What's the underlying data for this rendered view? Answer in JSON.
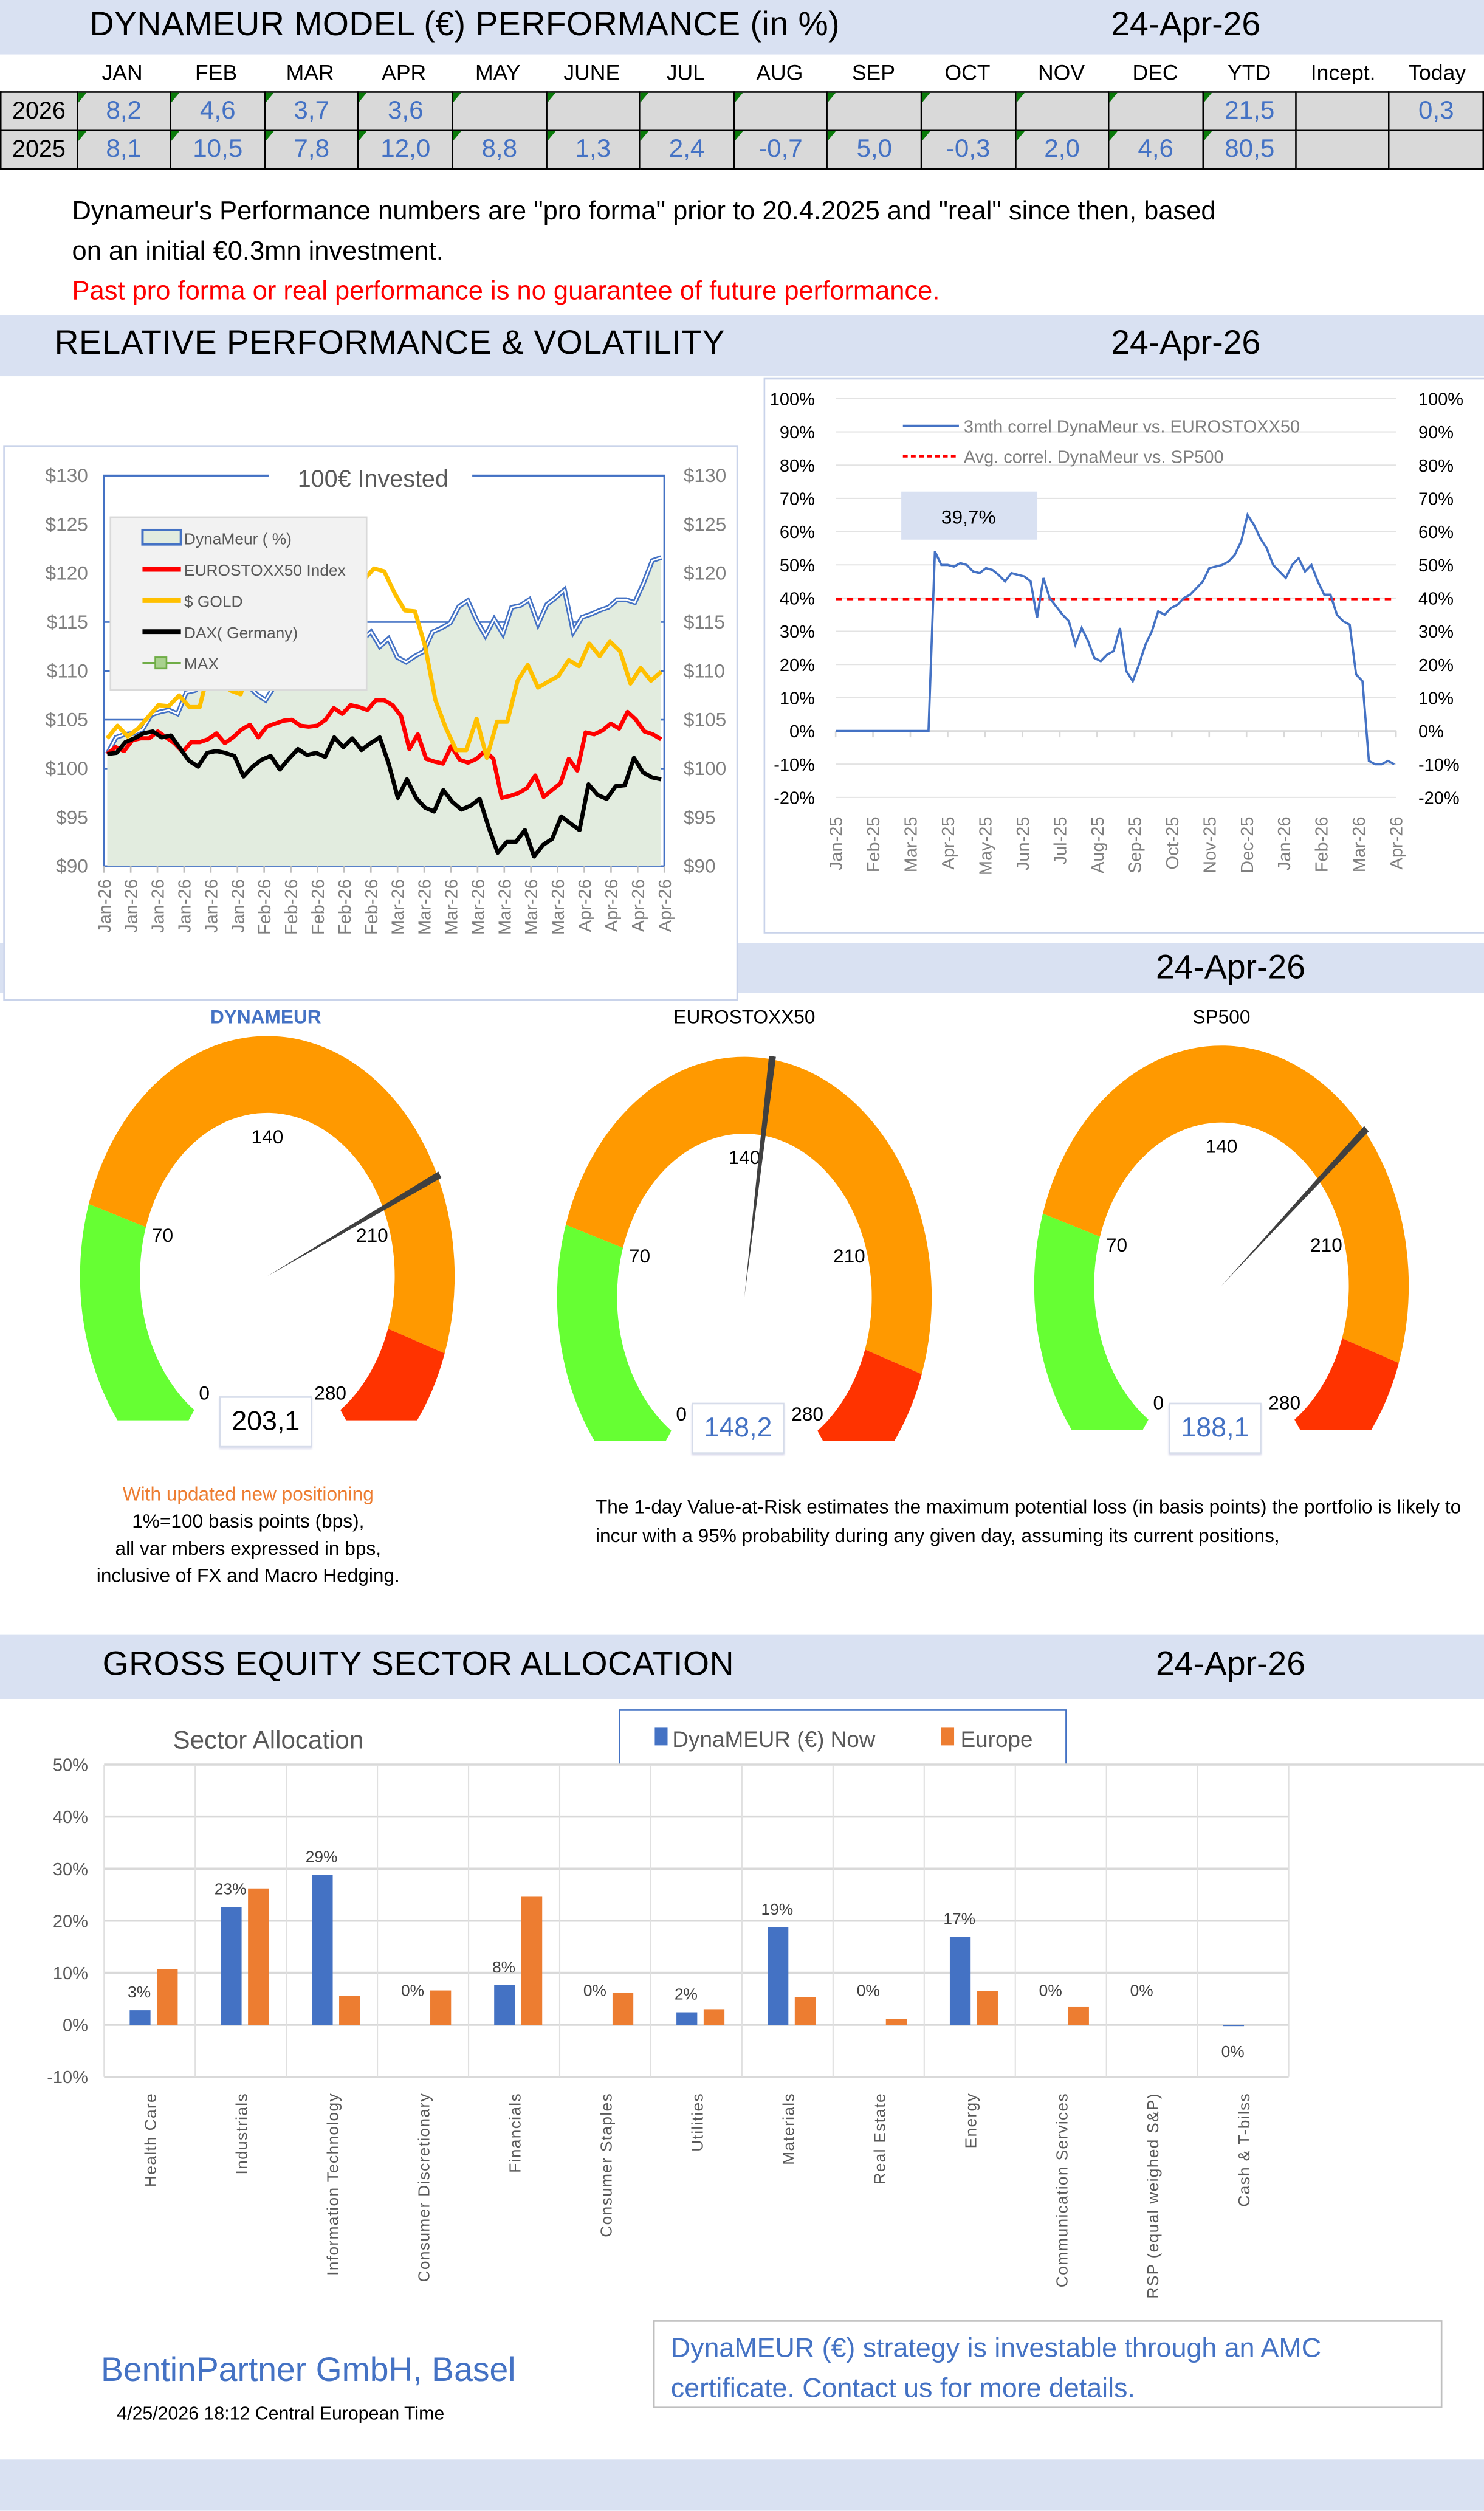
{
  "sections": {
    "performance": {
      "title": "DYNAMEUR MODEL (€) PERFORMANCE (in %)",
      "date": "24-Apr-26"
    },
    "relative": {
      "title": "RELATIVE PERFORMANCE & VOLATILITY",
      "date": "24-Apr-26"
    },
    "var": {
      "date": "24-Apr-26"
    },
    "sector": {
      "title": "GROSS EQUITY SECTOR ALLOCATION",
      "date": "24-Apr-26"
    }
  },
  "performance_table": {
    "columns": [
      "JAN",
      "FEB",
      "MAR",
      "APR",
      "MAY",
      "JUNE",
      "JUL",
      "AUG",
      "SEP",
      "OCT",
      "NOV",
      "DEC",
      "YTD",
      "Incept.",
      "Today"
    ],
    "rows": [
      {
        "year": "2026",
        "values": [
          "8,2",
          "4,6",
          "3,7",
          "3,6",
          "",
          "",
          "",
          "",
          "",
          "",
          "",
          "",
          "21,5",
          "",
          "0,3"
        ]
      },
      {
        "year": "2025",
        "values": [
          "8,1",
          "10,5",
          "7,8",
          "12,0",
          "8,8",
          "1,3",
          "2,4",
          "-0,7",
          "5,0",
          "-0,3",
          "2,0",
          "4,6",
          "80,5",
          "",
          ""
        ]
      }
    ]
  },
  "disclaimer": {
    "line1": "Dynameur's Performance numbers are \"pro forma\" prior to 20.4.2025 and \"real\" since then, based",
    "line2": "on an initial €0.3mn investment.",
    "warning": "Past pro forma or real performance is no guarantee of future performance."
  },
  "gauges": [
    {
      "label": "DYNAMEUR",
      "value": 203.1,
      "display": "203,1",
      "label_color": "#4472c4",
      "value_color": "#000000"
    },
    {
      "label": "EUROSTOXX50",
      "value": 148.2,
      "display": "148,2",
      "label_color": "#000000",
      "value_color": "#4472c4"
    },
    {
      "label": "SP500",
      "value": 188.1,
      "display": "188,1",
      "label_color": "#000000",
      "value_color": "#4472c4"
    }
  ],
  "gauge_scale": {
    "min": 0,
    "max": 280,
    "ticks": [
      "0",
      "70",
      "140",
      "210",
      "280"
    ],
    "bands": [
      {
        "from": 0,
        "to": 70,
        "color": "#66ff33"
      },
      {
        "from": 70,
        "to": 245,
        "color": "#ff9900"
      },
      {
        "from": 245,
        "to": 280,
        "color": "#ff3300"
      }
    ]
  },
  "notes": {
    "left_orange": "With updated new positioning",
    "left_lines": [
      "1%=100 basis points (bps),",
      "all var mbers expressed in bps,",
      "inclusive of FX and Macro Hedging."
    ],
    "right": "The 1-day Value-at-Risk estimates the maximum potential loss (in basis points) the portfolio is likely to incur with a 95% probability during any given day, assuming its current positions,"
  },
  "footer": {
    "company": "BentinPartner GmbH, Basel",
    "timestamp": "4/25/2026 18:12  Central European Time",
    "amc": "DynaMEUR (€) strategy is  investable through an AMC certificate. Contact us for more details."
  },
  "chart_data": [
    {
      "type": "line",
      "title": "100€ Invested",
      "ylim": [
        90,
        130
      ],
      "yticks": [
        "$90",
        "$95",
        "$100",
        "$105",
        "$110",
        "$115",
        "$120",
        "$125",
        "$130"
      ],
      "xticks": [
        "Jan-26",
        "Jan-26",
        "Jan-26",
        "Jan-26",
        "Jan-26",
        "Jan-26",
        "Feb-26",
        "Feb-26",
        "Feb-26",
        "Feb-26",
        "Feb-26",
        "Mar-26",
        "Mar-26",
        "Mar-26",
        "Mar-26",
        "Mar-26",
        "Mar-26",
        "Mar-26",
        "Apr-26",
        "Apr-26",
        "Apr-26",
        "Apr-26"
      ],
      "legend": "top-left",
      "series": [
        {
          "name": "DynaMeur ( %)",
          "color": "#4472c4",
          "fill": "#e2ecdf",
          "values": [
            101.5,
            103.2,
            103.5,
            103.6,
            104.0,
            105.5,
            105.8,
            106.0,
            105.6,
            107.8,
            108.0,
            108.8,
            108.5,
            108.9,
            108.1,
            108.3,
            108.5,
            107.6,
            107.0,
            108.4,
            109.3,
            110.3,
            108.6,
            109.3,
            109.6,
            109.8,
            112.3,
            113.5,
            112.1,
            113.2,
            114.0,
            112.5,
            113.3,
            111.4,
            110.9,
            111.5,
            112.0,
            114.0,
            114.4,
            114.9,
            116.6,
            117.2,
            115.2,
            113.6,
            115.3,
            113.8,
            116.5,
            116.7,
            117.3,
            114.8,
            116.8,
            117.5,
            118.3,
            114.0,
            115.5,
            115.8,
            116.2,
            116.5,
            117.3,
            117.3,
            117.0,
            119.0,
            121.3,
            121.6
          ]
        },
        {
          "name": "EUROSTOXX50 Index",
          "color": "#ff0000",
          "values": [
            101.5,
            102.2,
            101.8,
            102.9,
            103.1,
            103.1,
            103.8,
            103.2,
            102.6,
            101.7,
            102.7,
            102.7,
            103.0,
            103.6,
            102.6,
            103.2,
            104.0,
            104.5,
            103.2,
            104.3,
            104.6,
            104.9,
            105.0,
            104.4,
            104.3,
            104.4,
            105.0,
            106.2,
            105.6,
            106.5,
            106.3,
            106.0,
            107.0,
            107.0,
            106.5,
            105.4,
            102.0,
            103.5,
            101.0,
            100.7,
            100.5,
            102.3,
            100.9,
            100.6,
            101.0,
            101.8,
            101.0,
            97.0,
            97.2,
            97.5,
            98.0,
            99.3,
            97.1,
            97.8,
            98.5,
            101.0,
            99.8,
            103.7,
            103.5,
            103.9,
            104.6,
            104.1,
            105.8,
            105.0,
            103.8,
            103.5,
            103.0
          ]
        },
        {
          "name": "$ GOLD",
          "color": "#ffc000",
          "values": [
            103.1,
            104.4,
            103.3,
            104.1,
            105.3,
            106.5,
            106.4,
            107.5,
            106.3,
            106.3,
            110.5,
            109.8,
            108.0,
            107.6,
            111.0,
            119.0,
            120.0,
            119.5,
            120.5,
            122.0,
            123.8,
            118.0,
            119.2,
            117.5,
            119.6,
            119.3,
            120.5,
            120.2,
            118.0,
            116.2,
            116.1,
            112.5,
            107.0,
            104.2,
            101.9,
            101.9,
            105.1,
            101.1,
            104.8,
            104.8,
            109.0,
            110.6,
            108.3,
            108.9,
            109.5,
            111.1,
            110.5,
            112.8,
            111.5,
            113.0,
            112.0,
            108.7,
            110.3,
            109.0,
            109.9
          ]
        },
        {
          "name": "DAX( Germany)",
          "color": "#000000",
          "values": [
            101.5,
            101.6,
            102.7,
            103.1,
            103.6,
            103.8,
            103.2,
            103.4,
            102.1,
            100.8,
            100.2,
            101.6,
            101.8,
            101.6,
            101.3,
            99.2,
            100.2,
            100.9,
            101.3,
            99.9,
            101.0,
            102.0,
            101.4,
            101.6,
            101.2,
            103.2,
            102.2,
            103.1,
            101.9,
            102.6,
            103.2,
            100.5,
            97.0,
            98.9,
            97.0,
            96.0,
            95.6,
            97.8,
            96.6,
            95.8,
            96.2,
            96.9,
            94.0,
            91.4,
            92.5,
            92.5,
            93.7,
            91.0,
            92.2,
            92.8,
            95.1,
            94.4,
            93.7,
            98.4,
            97.3,
            96.9,
            98.2,
            98.3,
            101.1,
            99.6,
            99.1,
            98.9
          ]
        },
        {
          "name": "MAX",
          "color": "#70ad47",
          "values": []
        }
      ]
    },
    {
      "type": "line",
      "title": "",
      "ylim": [
        -20,
        100
      ],
      "yticks": [
        "-20%",
        "-10%",
        "0%",
        "10%",
        "20%",
        "30%",
        "40%",
        "50%",
        "60%",
        "70%",
        "80%",
        "90%",
        "100%"
      ],
      "xticks": [
        "Jan-25",
        "Feb-25",
        "Mar-25",
        "Apr-25",
        "May-25",
        "Jun-25",
        "Jul-25",
        "Aug-25",
        "Sep-25",
        "Oct-25",
        "Nov-25",
        "Dec-25",
        "Jan-26",
        "Feb-26",
        "Mar-26",
        "Apr-26"
      ],
      "legend": "top",
      "annotation": "39,7%",
      "series": [
        {
          "name": "3mth correl DynaMeur vs. EUROSTOXX50",
          "color": "#4472c4",
          "values": [
            0,
            0,
            0,
            0,
            0,
            0,
            0,
            0,
            0,
            0,
            0,
            0,
            0,
            0,
            54,
            50,
            50,
            49.5,
            50.5,
            50,
            48,
            47.5,
            49,
            48.5,
            47,
            45,
            47.5,
            47,
            46.5,
            45,
            34,
            46,
            40,
            37.5,
            35,
            33,
            26,
            31,
            27,
            22,
            21,
            23,
            24,
            31,
            18,
            15,
            20,
            26,
            30,
            36,
            35,
            37,
            38,
            40,
            41,
            43,
            45,
            49,
            49.5,
            50,
            51,
            53,
            57,
            65,
            62,
            58,
            55,
            50,
            48,
            46,
            50,
            52,
            48,
            50,
            45,
            41,
            41,
            35,
            33,
            32,
            17,
            15,
            -9,
            -10,
            -10,
            -9,
            -10
          ]
        },
        {
          "name": "Avg. correl. DynaMeur vs. SP500",
          "color": "#ff0000",
          "dashed": true,
          "values": [
            39.7
          ]
        }
      ]
    },
    {
      "type": "bar",
      "title": "Sector Allocation",
      "ylim": [
        -10,
        50
      ],
      "yticks": [
        "-10%",
        "0%",
        "10%",
        "20%",
        "30%",
        "40%",
        "50%"
      ],
      "legend": "top",
      "categories": [
        "Health Care",
        "Industrials",
        "Information Technology",
        "Consumer Discretionary",
        "Financials",
        "Consumer Staples",
        "Utilities",
        "Materials",
        "Real Estate",
        "Energy",
        "Communication Services",
        "RSP (equal weighed S&P)",
        "Cash & T-bilss"
      ],
      "series": [
        {
          "name": "DynaMEUR (€) Now",
          "color": "#4472c4",
          "values": [
            2.8,
            22.6,
            28.8,
            0,
            7.6,
            0,
            2.4,
            18.7,
            0,
            16.9,
            0,
            0,
            -0.2
          ],
          "labels": [
            "3%",
            "23%",
            "29%",
            "0%",
            "8%",
            "0%",
            "2%",
            "19%",
            "0%",
            "17%",
            "0%",
            "0%",
            "0%"
          ]
        },
        {
          "name": "Europe",
          "color": "#ed7d31",
          "values": [
            10.7,
            26.2,
            5.5,
            6.6,
            24.6,
            6.2,
            3.0,
            5.3,
            1.1,
            6.5,
            3.4,
            0,
            0
          ]
        }
      ]
    }
  ]
}
